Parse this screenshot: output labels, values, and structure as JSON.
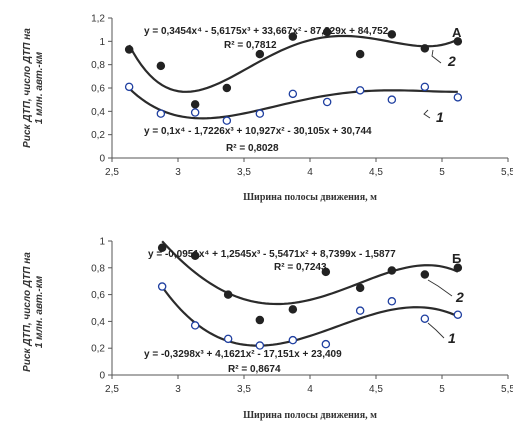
{
  "y_axis_label": [
    "Риск  ДТП, число ДТП на",
    "1 млн. авт.-км"
  ],
  "chart_data": [
    {
      "type": "scatter",
      "panel_letter": "А",
      "xlabel": "Ширина полосы движения, м",
      "xlim": [
        2.5,
        5.5
      ],
      "ylim": [
        0,
        1.2
      ],
      "x_ticks": [
        "2,5",
        "3",
        "3,5",
        "4",
        "4,5",
        "5",
        "5,5"
      ],
      "y_ticks": [
        "0",
        "0,2",
        "0,4",
        "0,6",
        "0,8",
        "1",
        "1,2"
      ],
      "grid": false,
      "series": [
        {
          "name": "2",
          "marker": "filled",
          "x": [
            2.63,
            2.87,
            3.13,
            3.37,
            3.62,
            3.87,
            4.13,
            4.38,
            4.62,
            4.87,
            5.12
          ],
          "y": [
            0.93,
            0.79,
            0.46,
            0.6,
            0.89,
            1.04,
            1.08,
            0.89,
            1.06,
            0.94,
            1.0
          ],
          "equation": "y = 0,3454x⁴ - 5,6175x³ + 33,667x² - 87,829x + 84,752",
          "r2": "R² = 0,7812",
          "coefficients": [
            0.3454,
            -5.6175,
            33.667,
            -87.829,
            84.752
          ]
        },
        {
          "name": "1",
          "marker": "open",
          "x": [
            2.63,
            2.87,
            3.13,
            3.37,
            3.62,
            3.87,
            4.13,
            4.38,
            4.62,
            4.87,
            5.12
          ],
          "y": [
            0.61,
            0.38,
            0.39,
            0.32,
            0.38,
            0.55,
            0.48,
            0.58,
            0.5,
            0.61,
            0.52
          ],
          "equation": "y = 0,1x⁴ - 1,7226x³ + 10,927x² - 30,105x + 30,744",
          "r2": "R² = 0,8028",
          "coefficients": [
            0.1,
            -1.7226,
            10.927,
            -30.105,
            30.744
          ]
        }
      ]
    },
    {
      "type": "scatter",
      "panel_letter": "Б",
      "xlabel": "Ширина полосы движения, м",
      "xlim": [
        2.5,
        5.5
      ],
      "ylim": [
        0,
        1
      ],
      "x_ticks": [
        "2,5",
        "3",
        "3,5",
        "4",
        "4,5",
        "5",
        "5,5"
      ],
      "y_ticks": [
        "0",
        "0,2",
        "0,4",
        "0,6",
        "0,8",
        "1"
      ],
      "grid": false,
      "series": [
        {
          "name": "2",
          "marker": "filled",
          "x": [
            2.88,
            3.13,
            3.38,
            3.62,
            3.87,
            4.12,
            4.38,
            4.62,
            4.87,
            5.12
          ],
          "y": [
            0.95,
            0.89,
            0.6,
            0.41,
            0.49,
            0.77,
            0.65,
            0.78,
            0.75,
            0.8
          ],
          "equation": "y = -0,0951x⁴ + 1,2545x³ - 5,5471x² + 8,7399x - 1,5877",
          "r2": "R² = 0,7243",
          "coefficients": [
            -0.0951,
            1.2545,
            -5.5471,
            8.7399,
            -1.5877
          ]
        },
        {
          "name": "1",
          "marker": "open",
          "x": [
            2.88,
            3.13,
            3.38,
            3.62,
            3.87,
            4.12,
            4.38,
            4.62,
            4.87,
            5.12
          ],
          "y": [
            0.66,
            0.37,
            0.27,
            0.22,
            0.26,
            0.23,
            0.48,
            0.55,
            0.42,
            0.45
          ],
          "equation": "y = -0,3298x³ + 4,1621x² - 17,151x + 23,409",
          "r2": "R² = 0,8674",
          "coefficients": [
            -0.3298,
            4.1621,
            -17.151,
            23.409
          ]
        }
      ]
    }
  ]
}
